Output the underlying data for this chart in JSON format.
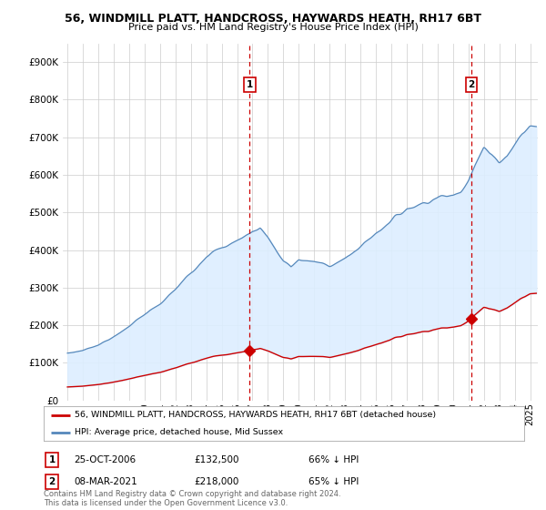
{
  "title": "56, WINDMILL PLATT, HANDCROSS, HAYWARDS HEATH, RH17 6BT",
  "subtitle": "Price paid vs. HM Land Registry's House Price Index (HPI)",
  "ylabel_ticks": [
    "£0",
    "£100K",
    "£200K",
    "£300K",
    "£400K",
    "£500K",
    "£600K",
    "£700K",
    "£800K",
    "£900K"
  ],
  "ytick_vals": [
    0,
    100000,
    200000,
    300000,
    400000,
    500000,
    600000,
    700000,
    800000,
    900000
  ],
  "ylim": [
    0,
    950000
  ],
  "xlim_start": 1994.7,
  "xlim_end": 2025.5,
  "sale1_date": 2006.82,
  "sale1_price": 132500,
  "sale2_date": 2021.18,
  "sale2_price": 218000,
  "red_line_color": "#cc0000",
  "blue_line_color": "#5588bb",
  "fill_color": "#ddeeff",
  "vline_color": "#cc0000",
  "legend_label_red": "56, WINDMILL PLATT, HANDCROSS, HAYWARDS HEATH, RH17 6BT (detached house)",
  "legend_label_blue": "HPI: Average price, detached house, Mid Sussex",
  "table_rows": [
    {
      "num": "1",
      "date": "25-OCT-2006",
      "price": "£132,500",
      "pct": "66% ↓ HPI"
    },
    {
      "num": "2",
      "date": "08-MAR-2021",
      "price": "£218,000",
      "pct": "65% ↓ HPI"
    }
  ],
  "footnote": "Contains HM Land Registry data © Crown copyright and database right 2024.\nThis data is licensed under the Open Government Licence v3.0.",
  "background_color": "#ffffff",
  "grid_color": "#cccccc",
  "hpi_base_years": [
    1995,
    1996,
    1997,
    1998,
    1999,
    2000,
    2001,
    2002,
    2003,
    2004,
    2005,
    2006,
    2007,
    2007.5,
    2008,
    2008.5,
    2009,
    2009.5,
    2010,
    2011,
    2012,
    2013,
    2014,
    2015,
    2016,
    2017,
    2018,
    2019,
    2020,
    2020.5,
    2021,
    2021.5,
    2022,
    2022.5,
    2023,
    2023.5,
    2024,
    2024.5,
    2025
  ],
  "hpi_base_vals": [
    125000,
    133000,
    148000,
    168000,
    198000,
    228000,
    255000,
    295000,
    340000,
    385000,
    405000,
    425000,
    450000,
    460000,
    435000,
    400000,
    370000,
    355000,
    375000,
    368000,
    360000,
    375000,
    410000,
    445000,
    480000,
    510000,
    525000,
    540000,
    545000,
    560000,
    590000,
    630000,
    670000,
    660000,
    635000,
    650000,
    680000,
    710000,
    730000
  ]
}
